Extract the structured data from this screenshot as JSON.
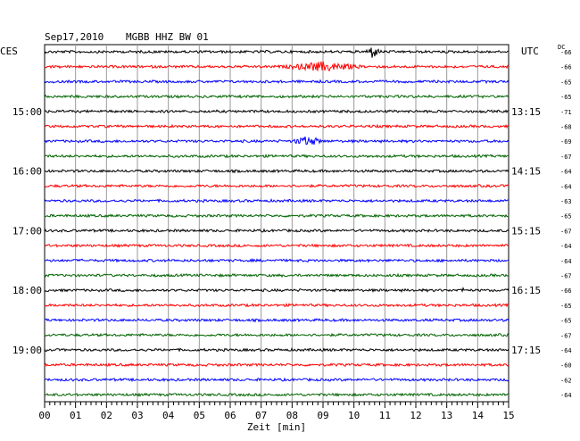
{
  "header": {
    "date": "Sep17,2010",
    "station": "MGBB HHZ BW 01",
    "left_tz": "CES",
    "right_tz": "UTC",
    "dc_label": "DC"
  },
  "chart_data": {
    "type": "line",
    "title": "Sep17,2010   MGBB HHZ BW 01",
    "xlabel": "Zeit [min]",
    "ylabel": "",
    "xlim": [
      0,
      15
    ],
    "x_ticks": [
      "00",
      "01",
      "02",
      "03",
      "04",
      "05",
      "06",
      "07",
      "08",
      "09",
      "10",
      "11",
      "12",
      "13",
      "14",
      "15"
    ],
    "grid": true,
    "minutes_per_trace": 15,
    "left_time_labels": [
      {
        "trace": 4,
        "label": "15:00"
      },
      {
        "trace": 8,
        "label": "16:00"
      },
      {
        "trace": 12,
        "label": "17:00"
      },
      {
        "trace": 16,
        "label": "18:00"
      },
      {
        "trace": 20,
        "label": "19:00"
      }
    ],
    "right_time_labels": [
      {
        "trace": 4,
        "label": "13:15"
      },
      {
        "trace": 8,
        "label": "14:15"
      },
      {
        "trace": 12,
        "label": "15:15"
      },
      {
        "trace": 16,
        "label": "16:15"
      },
      {
        "trace": 20,
        "label": "17:15"
      }
    ],
    "trace_colors": [
      "#000000",
      "#ff0000",
      "#0000ff",
      "#006400"
    ],
    "dc_offsets": [
      "-66",
      "-66",
      "-65",
      "-65",
      "-71",
      "-68",
      "-69",
      "-67",
      "-64",
      "-64",
      "-63",
      "-65",
      "-67",
      "-64",
      "-64",
      "-67",
      "-66",
      "-65",
      "-65",
      "-67",
      "-64",
      "-60",
      "-62",
      "-64"
    ],
    "events": [
      {
        "trace": 0,
        "start": 10.4,
        "end": 10.9,
        "peak": 10.6,
        "amplitude": 8,
        "note": "spike"
      },
      {
        "trace": 1,
        "start": 7.3,
        "end": 10.5,
        "peak": 9.0,
        "amplitude": 6,
        "note": "long burst"
      },
      {
        "trace": 6,
        "start": 7.9,
        "end": 9.2,
        "peak": 8.5,
        "amplitude": 6,
        "note": "burst"
      },
      {
        "trace": 16,
        "start": 13.3,
        "end": 13.7,
        "peak": 13.5,
        "amplitude": 3,
        "note": "small event"
      }
    ]
  }
}
